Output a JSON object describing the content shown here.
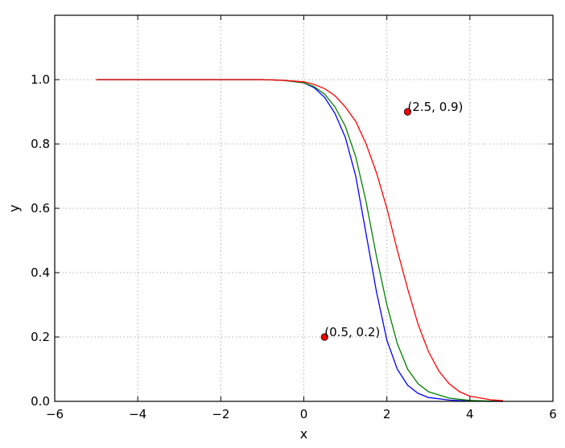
{
  "chart_data": {
    "type": "line",
    "title": "",
    "xlabel": "x",
    "ylabel": "y",
    "xlim": [
      -6,
      6
    ],
    "ylim": [
      0.0,
      1.2
    ],
    "xticks": [
      -6,
      -4,
      -2,
      0,
      2,
      4,
      6
    ],
    "xtick_labels": [
      "−6",
      "−4",
      "−2",
      "0",
      "2",
      "4",
      "6"
    ],
    "yticks": [
      0.0,
      0.2,
      0.4,
      0.6,
      0.8,
      1.0
    ],
    "ytick_labels": [
      "0.0",
      "0.2",
      "0.4",
      "0.6",
      "0.8",
      "1.0"
    ],
    "grid": true,
    "series": [
      {
        "color": "#0000ff",
        "x": [
          -5.0,
          -1.0,
          -0.5,
          0.0,
          0.25,
          0.5,
          0.75,
          1.0,
          1.25,
          1.5,
          1.75,
          2.0,
          2.25,
          2.5,
          2.75,
          3.0,
          3.5,
          4.0,
          4.5,
          4.8
        ],
        "y": [
          1.0,
          1.0,
          0.998,
          0.99,
          0.975,
          0.945,
          0.895,
          0.82,
          0.7,
          0.52,
          0.34,
          0.19,
          0.1,
          0.05,
          0.025,
          0.012,
          0.004,
          0.001,
          0.0,
          0.0
        ]
      },
      {
        "color": "#008000",
        "x": [
          -5.0,
          -1.0,
          -0.5,
          0.0,
          0.25,
          0.5,
          0.75,
          1.0,
          1.25,
          1.5,
          1.75,
          2.0,
          2.25,
          2.5,
          2.75,
          3.0,
          3.5,
          4.0,
          4.5,
          4.8
        ],
        "y": [
          1.0,
          1.0,
          0.998,
          0.99,
          0.978,
          0.955,
          0.915,
          0.855,
          0.76,
          0.62,
          0.45,
          0.3,
          0.18,
          0.1,
          0.055,
          0.03,
          0.01,
          0.003,
          0.001,
          0.0
        ]
      },
      {
        "color": "#ff0000",
        "x": [
          -5.0,
          -1.0,
          -0.5,
          0.0,
          0.25,
          0.5,
          0.75,
          1.0,
          1.25,
          1.5,
          1.75,
          2.0,
          2.25,
          2.5,
          2.75,
          3.0,
          3.25,
          3.5,
          3.75,
          4.0,
          4.5,
          4.8
        ],
        "y": [
          1.0,
          1.0,
          0.998,
          0.993,
          0.985,
          0.972,
          0.95,
          0.915,
          0.87,
          0.8,
          0.71,
          0.6,
          0.47,
          0.35,
          0.24,
          0.155,
          0.095,
          0.055,
          0.03,
          0.016,
          0.005,
          0.002
        ]
      }
    ],
    "points": [
      {
        "x": 0.5,
        "y": 0.2,
        "label": "(0.5, 0.2)",
        "color": "#ff0000"
      },
      {
        "x": 2.5,
        "y": 0.9,
        "label": "(2.5, 0.9)",
        "color": "#ff0000"
      }
    ]
  }
}
